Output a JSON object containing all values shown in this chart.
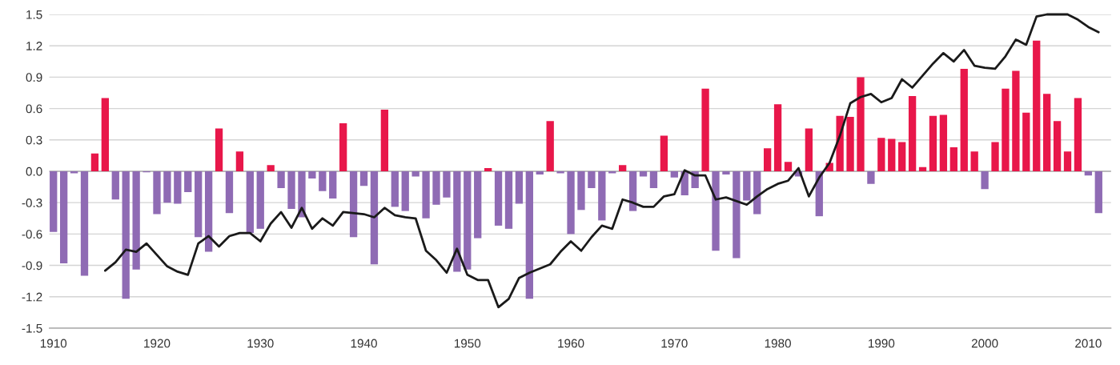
{
  "chart_data": {
    "type": "bar",
    "x": [
      1910,
      1911,
      1912,
      1913,
      1914,
      1915,
      1916,
      1917,
      1918,
      1919,
      1920,
      1921,
      1922,
      1923,
      1924,
      1925,
      1926,
      1927,
      1928,
      1929,
      1930,
      1931,
      1932,
      1933,
      1934,
      1935,
      1936,
      1937,
      1938,
      1939,
      1940,
      1941,
      1942,
      1943,
      1944,
      1945,
      1946,
      1947,
      1948,
      1949,
      1950,
      1951,
      1952,
      1953,
      1954,
      1955,
      1956,
      1957,
      1958,
      1959,
      1960,
      1961,
      1962,
      1963,
      1964,
      1965,
      1966,
      1967,
      1968,
      1969,
      1970,
      1971,
      1972,
      1973,
      1974,
      1975,
      1976,
      1977,
      1978,
      1979,
      1980,
      1981,
      1982,
      1983,
      1984,
      1985,
      1986,
      1987,
      1988,
      1989,
      1990,
      1991,
      1992,
      1993,
      1994,
      1995,
      1996,
      1997,
      1998,
      1999,
      2000,
      2001,
      2002,
      2003,
      2004,
      2005,
      2006,
      2007,
      2008,
      2009,
      2010,
      2011
    ],
    "series": [
      {
        "values": [
          -0.58,
          -0.88,
          -0.02,
          -1.0,
          0.17,
          0.7,
          -0.27,
          -1.22,
          -0.94,
          -0.01,
          -0.41,
          -0.3,
          -0.31,
          -0.2,
          -0.63,
          -0.77,
          0.41,
          -0.4,
          0.19,
          -0.59,
          -0.55,
          0.06,
          -0.16,
          -0.36,
          -0.44,
          -0.07,
          -0.19,
          -0.26,
          0.46,
          -0.63,
          -0.14,
          -0.89,
          0.59,
          -0.34,
          -0.38,
          -0.05,
          -0.45,
          -0.32,
          -0.25,
          -0.96,
          -0.94,
          -0.64,
          0.03,
          -0.52,
          -0.55,
          -0.31,
          -1.22,
          -0.03,
          0.48,
          -0.02,
          -0.6,
          -0.37,
          -0.16,
          -0.47,
          -0.02,
          0.06,
          -0.38,
          -0.05,
          -0.16,
          0.34,
          -0.06,
          -0.23,
          -0.16,
          0.79,
          -0.76,
          -0.03,
          -0.83,
          -0.28,
          -0.41,
          0.22,
          0.64,
          0.09,
          -0.05,
          0.41,
          -0.43,
          0.08,
          0.53,
          0.52,
          0.9,
          -0.12,
          0.32,
          0.31,
          0.28,
          0.72,
          0.04,
          0.53,
          0.54,
          0.23,
          0.98,
          0.19,
          -0.17,
          0.28,
          0.79,
          0.96,
          0.56,
          1.25,
          0.74,
          0.48,
          0.19,
          0.7,
          -0.04,
          -0.4
        ],
        "colors": [
          "#8f6bb4",
          "#8f6bb4",
          "#8f6bb4",
          "#8f6bb4",
          "#e8174a",
          "#e8174a",
          "#8f6bb4",
          "#8f6bb4",
          "#8f6bb4",
          "#8f6bb4",
          "#8f6bb4",
          "#8f6bb4",
          "#8f6bb4",
          "#8f6bb4",
          "#8f6bb4",
          "#8f6bb4",
          "#e8174a",
          "#8f6bb4",
          "#e8174a",
          "#8f6bb4",
          "#8f6bb4",
          "#e8174a",
          "#8f6bb4",
          "#8f6bb4",
          "#8f6bb4",
          "#8f6bb4",
          "#8f6bb4",
          "#8f6bb4",
          "#e8174a",
          "#8f6bb4",
          "#8f6bb4",
          "#8f6bb4",
          "#e8174a",
          "#8f6bb4",
          "#8f6bb4",
          "#8f6bb4",
          "#8f6bb4",
          "#8f6bb4",
          "#8f6bb4",
          "#8f6bb4",
          "#8f6bb4",
          "#8f6bb4",
          "#e8174a",
          "#8f6bb4",
          "#8f6bb4",
          "#8f6bb4",
          "#8f6bb4",
          "#8f6bb4",
          "#e8174a",
          "#8f6bb4",
          "#8f6bb4",
          "#8f6bb4",
          "#8f6bb4",
          "#8f6bb4",
          "#8f6bb4",
          "#e8174a",
          "#8f6bb4",
          "#8f6bb4",
          "#8f6bb4",
          "#e8174a",
          "#8f6bb4",
          "#8f6bb4",
          "#8f6bb4",
          "#e8174a",
          "#8f6bb4",
          "#8f6bb4",
          "#8f6bb4",
          "#8f6bb4",
          "#8f6bb4",
          "#e8174a",
          "#e8174a",
          "#e8174a",
          "#8f6bb4",
          "#e8174a",
          "#8f6bb4",
          "#e8174a",
          "#e8174a",
          "#e8174a",
          "#e8174a",
          "#8f6bb4",
          "#e8174a",
          "#e8174a",
          "#e8174a",
          "#e8174a",
          "#e8174a",
          "#e8174a",
          "#e8174a",
          "#e8174a",
          "#e8174a",
          "#e8174a",
          "#8f6bb4",
          "#e8174a",
          "#e8174a",
          "#e8174a",
          "#e8174a",
          "#e8174a",
          "#e8174a",
          "#e8174a",
          "#e8174a",
          "#e8174a",
          "#8f6bb4",
          "#8f6bb4"
        ]
      },
      {
        "type": "line",
        "color": "#1a1a1a",
        "x": [
          1915,
          1916,
          1917,
          1918,
          1919,
          1921,
          1922,
          1923,
          1924,
          1925,
          1926,
          1927,
          1928,
          1929,
          1930,
          1931,
          1932,
          1933,
          1934,
          1935,
          1936,
          1937,
          1938,
          1940,
          1941,
          1942,
          1943,
          1944,
          1945,
          1946,
          1947,
          1948,
          1949,
          1950,
          1951,
          1952,
          1953,
          1954,
          1955,
          1956,
          1958,
          1959,
          1960,
          1961,
          1962,
          1963,
          1964,
          1965,
          1966,
          1967,
          1968,
          1969,
          1970,
          1971,
          1972,
          1973,
          1974,
          1975,
          1977,
          1978,
          1979,
          1980,
          1981,
          1982,
          1983,
          1984,
          1985,
          1986,
          1987,
          1988,
          1989,
          1990,
          1991,
          1992,
          1993,
          1995,
          1996,
          1997,
          1998,
          1999,
          2000,
          2001,
          2002,
          2003,
          2004,
          2005,
          2006,
          2007,
          2008,
          2009,
          2010,
          2011
        ],
        "values": [
          -0.95,
          -0.87,
          -0.75,
          -0.77,
          -0.69,
          -0.91,
          -0.96,
          -0.99,
          -0.69,
          -0.62,
          -0.72,
          -0.62,
          -0.59,
          -0.59,
          -0.67,
          -0.5,
          -0.39,
          -0.54,
          -0.35,
          -0.55,
          -0.45,
          -0.52,
          -0.39,
          -0.41,
          -0.44,
          -0.35,
          -0.42,
          -0.44,
          -0.45,
          -0.76,
          -0.85,
          -0.97,
          -0.74,
          -0.99,
          -1.04,
          -1.04,
          -1.3,
          -1.22,
          -1.02,
          -0.97,
          -0.89,
          -0.77,
          -0.67,
          -0.76,
          -0.63,
          -0.52,
          -0.55,
          -0.27,
          -0.3,
          -0.34,
          -0.34,
          -0.24,
          -0.22,
          0.01,
          -0.04,
          -0.04,
          -0.27,
          -0.25,
          -0.32,
          -0.24,
          -0.17,
          -0.12,
          -0.09,
          0.03,
          -0.24,
          -0.06,
          0.08,
          0.34,
          0.65,
          0.71,
          0.74,
          0.66,
          0.7,
          0.88,
          0.8,
          1.03,
          1.13,
          1.05,
          1.16,
          1.01,
          0.99,
          0.98,
          1.1,
          1.26,
          1.21,
          1.48,
          1.5,
          1.5,
          1.5,
          1.45,
          1.38,
          1.33
        ]
      }
    ],
    "xlim": [
      1909.6,
      2012.2
    ],
    "xticks": [
      1910,
      1920,
      1930,
      1940,
      1950,
      1960,
      1970,
      1980,
      1990,
      2000,
      2010
    ],
    "ylim": [
      -1.5,
      1.5
    ],
    "yticks": [
      {
        "value": 1.5,
        "label": "1.5"
      },
      {
        "value": 1.2,
        "label": "1.2"
      },
      {
        "value": 0.9,
        "label": "0.9"
      },
      {
        "value": 0.6,
        "label": "0.6"
      },
      {
        "value": 0.3,
        "label": "0.3"
      },
      {
        "value": 0,
        "label": "0.0"
      },
      {
        "value": -0.3,
        "label": "-0.3"
      },
      {
        "value": -0.6,
        "label": "-0.6"
      },
      {
        "value": -0.9,
        "label": "-0.9"
      },
      {
        "value": -1.2,
        "label": "-1.2"
      },
      {
        "value": -1.5,
        "label": "-1.5"
      }
    ],
    "grid": "y",
    "marker": "none",
    "line_style": "solid"
  }
}
